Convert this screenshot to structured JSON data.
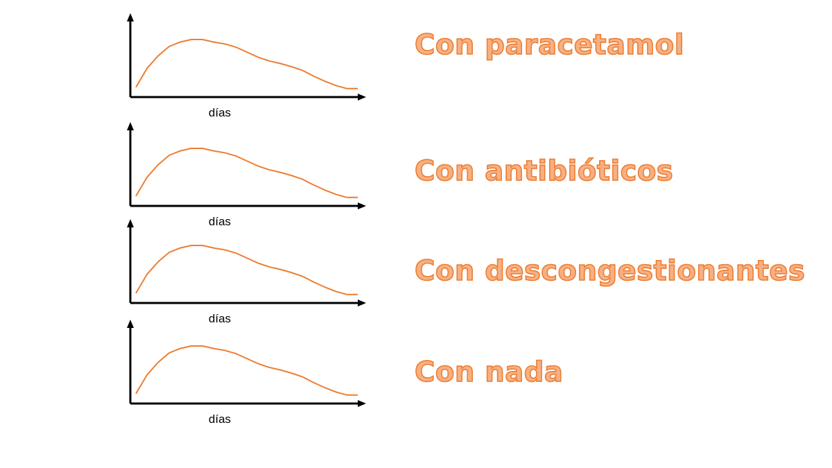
{
  "colors": {
    "curve": "#ed7d31",
    "label_fill": "#f7b083",
    "label_stroke": "#ed7d31",
    "axis": "#000000"
  },
  "chart_data": [
    {
      "type": "line",
      "xlabel": "días",
      "label": "Con paracetamol",
      "x": [
        0,
        1,
        2,
        3,
        4,
        5,
        6,
        7,
        8,
        9,
        10,
        11,
        12,
        13,
        14,
        15,
        16,
        17,
        18,
        19,
        20
      ],
      "series": [
        {
          "values": [
            1,
            4,
            6,
            7.5,
            8.2,
            8.6,
            8.6,
            8.2,
            7.9,
            7.4,
            6.6,
            5.8,
            5.2,
            4.8,
            4.3,
            3.7,
            2.8,
            2.0,
            1.3,
            0.8,
            0.8
          ]
        }
      ]
    },
    {
      "type": "line",
      "xlabel": "días",
      "label": "Con antibióticos",
      "x": [
        0,
        1,
        2,
        3,
        4,
        5,
        6,
        7,
        8,
        9,
        10,
        11,
        12,
        13,
        14,
        15,
        16,
        17,
        18,
        19,
        20
      ],
      "series": [
        {
          "values": [
            1,
            4,
            6,
            7.5,
            8.2,
            8.6,
            8.6,
            8.2,
            7.9,
            7.4,
            6.6,
            5.8,
            5.2,
            4.8,
            4.3,
            3.7,
            2.8,
            2.0,
            1.3,
            0.8,
            0.8
          ]
        }
      ]
    },
    {
      "type": "line",
      "xlabel": "días",
      "label": "Con descongestionantes",
      "x": [
        0,
        1,
        2,
        3,
        4,
        5,
        6,
        7,
        8,
        9,
        10,
        11,
        12,
        13,
        14,
        15,
        16,
        17,
        18,
        19,
        20
      ],
      "series": [
        {
          "values": [
            1,
            4,
            6,
            7.5,
            8.2,
            8.6,
            8.6,
            8.2,
            7.9,
            7.4,
            6.6,
            5.8,
            5.2,
            4.8,
            4.3,
            3.7,
            2.8,
            2.0,
            1.3,
            0.8,
            0.8
          ]
        }
      ]
    },
    {
      "type": "line",
      "xlabel": "días",
      "label": "Con nada",
      "x": [
        0,
        1,
        2,
        3,
        4,
        5,
        6,
        7,
        8,
        9,
        10,
        11,
        12,
        13,
        14,
        15,
        16,
        17,
        18,
        19,
        20
      ],
      "series": [
        {
          "values": [
            1,
            4,
            6,
            7.5,
            8.2,
            8.6,
            8.6,
            8.2,
            7.9,
            7.4,
            6.6,
            5.8,
            5.2,
            4.8,
            4.3,
            3.7,
            2.8,
            2.0,
            1.3,
            0.8,
            0.8
          ]
        }
      ]
    }
  ]
}
